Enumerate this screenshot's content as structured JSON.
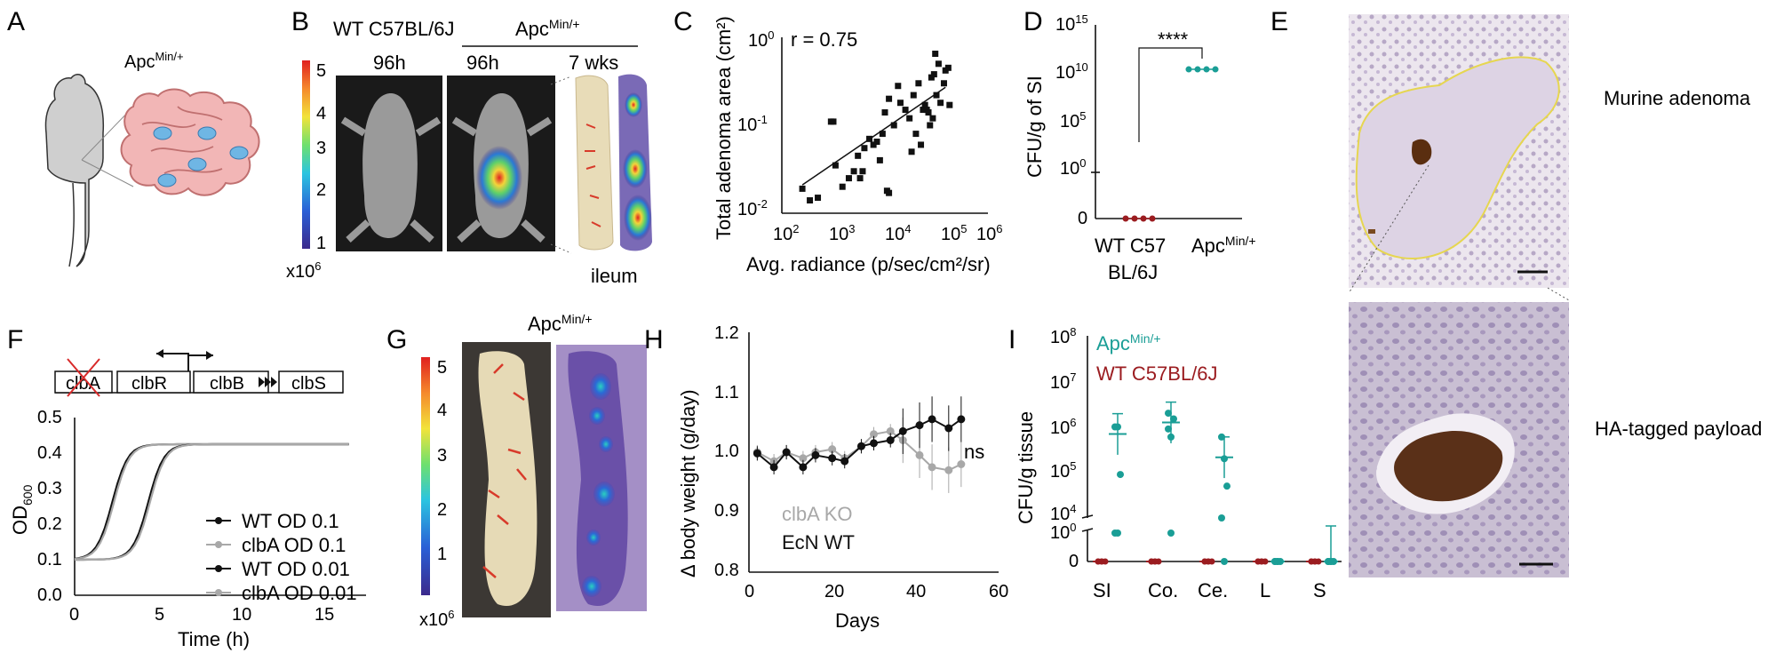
{
  "panels": {
    "A": {
      "letter": "A",
      "label_main": "Apc",
      "label_sup": "Min/+"
    },
    "B": {
      "letter": "B",
      "wt_label": "WT C57BL/6J",
      "apc_main": "Apc",
      "apc_sup": "Min/+",
      "t1": "96h",
      "t2": "96h",
      "t3": "7 wks",
      "tissue": "ileum",
      "scale_ticks": [
        "5",
        "4",
        "3",
        "2",
        "1"
      ],
      "scale_unit_main": "x10",
      "scale_unit_sup": "6"
    },
    "C": {
      "letter": "C",
      "annotation": "r = 0.75"
    },
    "D": {
      "letter": "D",
      "significance": "****"
    },
    "E": {
      "letter": "E",
      "caption_top": "Murine adenoma",
      "caption_bottom": "HA-tagged payload"
    },
    "F": {
      "letter": "F",
      "genes": [
        "clbA",
        "clbR",
        "clbB",
        "clbS"
      ]
    },
    "G": {
      "letter": "G",
      "apc_main": "Apc",
      "apc_sup": "Min/+",
      "scale_ticks": [
        "5",
        "4",
        "3",
        "2",
        "1"
      ],
      "scale_unit_main": "x10",
      "scale_unit_sup": "6"
    },
    "H": {
      "letter": "H",
      "annotation": "ns"
    },
    "I": {
      "letter": "I",
      "legend": [
        {
          "name_main": "Apc",
          "name_sup": "Min/+",
          "color": "#1a9e96"
        },
        {
          "name_main": "WT C57BL/6J",
          "name_sup": "",
          "color": "#9b1c20"
        }
      ]
    }
  },
  "colors": {
    "teal": "#1a9e96",
    "red": "#9b1c20",
    "gray": "#a8a8a8",
    "black": "#111111",
    "yellow": "#e8d84a"
  },
  "chart_data": [
    {
      "id": "C",
      "type": "scatter",
      "xlabel": "Avg. radiance (p/sec/cm²/sr)",
      "ylabel": "Total adenoma area (cm²)",
      "xscale": "log",
      "yscale": "log",
      "xlim": [
        100,
        1000000
      ],
      "ylim": [
        0.01,
        1
      ],
      "xticks": [
        "10²",
        "10³",
        "10⁴",
        "10⁵",
        "10⁶"
      ],
      "yticks": [
        "10⁰",
        "10⁻¹",
        "10⁻²"
      ],
      "points": [
        [
          250,
          0.019
        ],
        [
          350,
          0.014
        ],
        [
          500,
          0.015
        ],
        [
          900,
          0.11
        ],
        [
          1000,
          0.11
        ],
        [
          1100,
          0.035
        ],
        [
          1500,
          0.02
        ],
        [
          2000,
          0.025
        ],
        [
          2500,
          0.03
        ],
        [
          3000,
          0.045
        ],
        [
          3300,
          0.025
        ],
        [
          3700,
          0.03
        ],
        [
          4000,
          0.055
        ],
        [
          5000,
          0.07
        ],
        [
          6000,
          0.06
        ],
        [
          7000,
          0.065
        ],
        [
          8000,
          0.04
        ],
        [
          9000,
          0.08
        ],
        [
          10000,
          0.14
        ],
        [
          11000,
          0.018
        ],
        [
          12000,
          0.017
        ],
        [
          12000,
          0.2
        ],
        [
          15000,
          0.1
        ],
        [
          18000,
          0.28
        ],
        [
          20000,
          0.18
        ],
        [
          25000,
          0.15
        ],
        [
          30000,
          0.12
        ],
        [
          33000,
          0.05
        ],
        [
          36000,
          0.22
        ],
        [
          40000,
          0.08
        ],
        [
          45000,
          0.3
        ],
        [
          50000,
          0.06
        ],
        [
          55000,
          0.15
        ],
        [
          60000,
          0.17
        ],
        [
          65000,
          0.15
        ],
        [
          70000,
          0.14
        ],
        [
          75000,
          0.1
        ],
        [
          80000,
          0.35
        ],
        [
          85000,
          0.12
        ],
        [
          90000,
          0.38
        ],
        [
          95000,
          0.65
        ],
        [
          100000,
          0.22
        ],
        [
          110000,
          0.5
        ],
        [
          120000,
          0.18
        ],
        [
          140000,
          0.3
        ],
        [
          150000,
          0.42
        ],
        [
          170000,
          0.45
        ],
        [
          180000,
          0.17
        ]
      ],
      "fit": [
        [
          250,
          0.021
        ],
        [
          150000,
          0.27
        ]
      ]
    },
    {
      "id": "D",
      "type": "scatter",
      "ylabel": "CFU/g of SI",
      "yscale": "log",
      "yticks": [
        "10¹⁵",
        "10¹⁰",
        "10⁵",
        "10⁰",
        "0"
      ],
      "categories": [
        "WT C57\nBL/6J",
        "Apc"
      ],
      "series": [
        {
          "name": "WT C57 BL/6J",
          "values": [
            0,
            0,
            0,
            0
          ]
        },
        {
          "name": "ApcMin/+",
          "values": [
            30000000000.0,
            30000000000.0,
            30000000000.0,
            30000000000.0
          ]
        }
      ]
    },
    {
      "id": "F",
      "type": "line",
      "xlabel": "Time (h)",
      "ylabel": "OD600",
      "xlim": [
        0,
        17
      ],
      "ylim": [
        0,
        0.5
      ],
      "xticks": [
        "0",
        "5",
        "10",
        "15"
      ],
      "yticks": [
        "0.0",
        "0.1",
        "0.2",
        "0.3",
        "0.4",
        "0.5"
      ],
      "series": [
        {
          "name": "WT OD 0.1",
          "midpoint": 2.2
        },
        {
          "name": "clbA OD 0.1",
          "midpoint": 2.3
        },
        {
          "name": "WT OD 0.01",
          "midpoint": 4.3
        },
        {
          "name": "clbA OD 0.01",
          "midpoint": 4.4
        }
      ],
      "baseline": 0.1,
      "plateau": 0.425,
      "tmax": 16
    },
    {
      "id": "H",
      "type": "line",
      "xlabel": "Days",
      "ylabel": "Δ body weight (g/day)",
      "xlim": [
        0,
        60
      ],
      "ylim": [
        0.8,
        1.2
      ],
      "xticks": [
        "0",
        "20",
        "40",
        "60"
      ],
      "yticks": [
        "0.8",
        "0.9",
        "1.0",
        "1.1",
        "1.2"
      ],
      "series": [
        {
          "name": "clbA KO",
          "x": [
            2,
            6,
            9,
            13,
            16,
            20,
            23,
            27,
            30,
            34,
            37,
            41,
            44,
            48,
            51
          ],
          "y": [
            1.0,
            0.985,
            1.0,
            0.99,
            1.0,
            1.005,
            0.99,
            1.01,
            1.03,
            1.035,
            1.02,
            0.995,
            0.975,
            0.97,
            0.98
          ]
        },
        {
          "name": "EcN WT",
          "x": [
            2,
            6,
            9,
            13,
            16,
            20,
            23,
            27,
            30,
            34,
            37,
            41,
            44,
            48,
            51
          ],
          "y": [
            0.998,
            0.975,
            1.0,
            0.975,
            0.995,
            0.99,
            0.985,
            1.01,
            1.015,
            1.02,
            1.035,
            1.045,
            1.055,
            1.04,
            1.055
          ]
        }
      ]
    },
    {
      "id": "I",
      "type": "scatter",
      "ylabel": "CFU/g tissue",
      "yscale": "log",
      "yticks": [
        "10⁸",
        "10⁷",
        "10⁶",
        "10⁵",
        "10⁴",
        "10⁰",
        "0"
      ],
      "categories": [
        "SI",
        "Co.",
        "Ce.",
        "L",
        "S"
      ],
      "series": [
        {
          "name": "ApcMin/+",
          "values": [
            [
              1000000.0,
              1000000.0,
              90000.0,
              1,
              1
            ],
            [
              2000000.0,
              600000.0,
              1500000.0,
              900000.0,
              0.5
            ],
            [
              600000.0,
              200000.0,
              50000.0,
              10000.0,
              0
            ],
            [
              0,
              0,
              0,
              0,
              0
            ],
            [
              0,
              0,
              0,
              0,
              0
            ]
          ]
        },
        {
          "name": "WT C57BL/6J",
          "values": [
            [
              0,
              0,
              0,
              0,
              0
            ],
            [
              0,
              0,
              0,
              0,
              0
            ],
            [
              0,
              0,
              0,
              0,
              0
            ],
            [
              0,
              0,
              0,
              0,
              0
            ],
            [
              0,
              0,
              0,
              0,
              0
            ]
          ]
        }
      ]
    }
  ]
}
